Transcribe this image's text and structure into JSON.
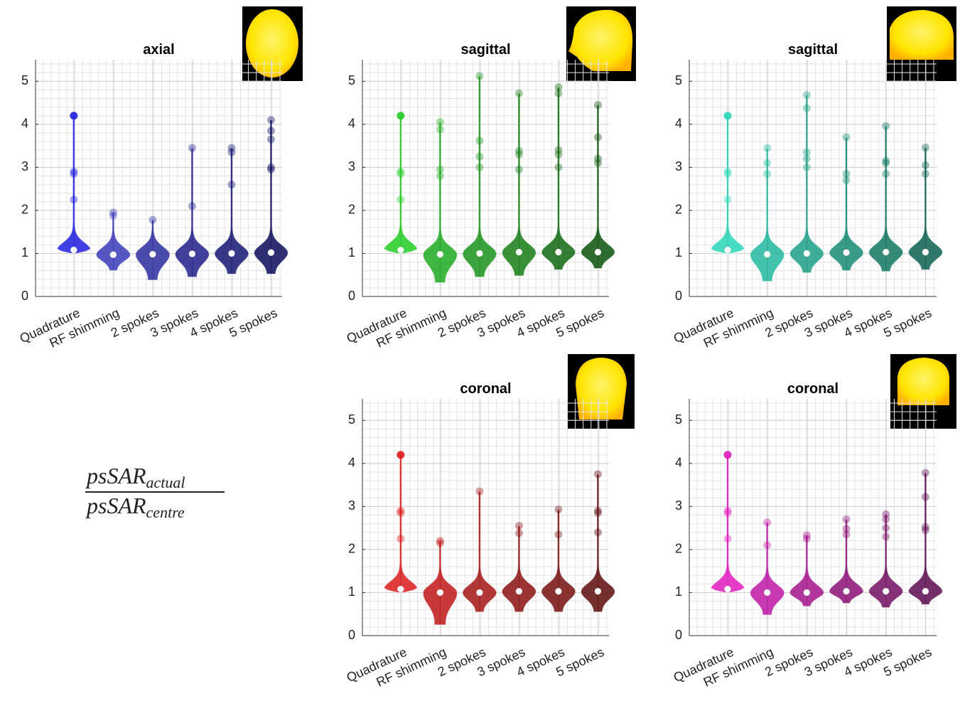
{
  "chart_data": [
    {
      "type": "violin",
      "title": "axial",
      "categories": [
        "Quadrature",
        "RF  shimming",
        "2 spokes",
        "3 spokes",
        "4 spokes",
        "5 spokes"
      ],
      "colors": [
        "#1f1fe0",
        "#3a3ab8",
        "#2b2ba0",
        "#20208a",
        "#151574",
        "#0b0b5c"
      ],
      "median": [
        1.08,
        0.97,
        0.98,
        0.99,
        1.0,
        1.02
      ],
      "min": [
        1.0,
        0.6,
        0.38,
        0.45,
        0.52,
        0.52
      ],
      "max": [
        4.2,
        1.95,
        1.78,
        3.45,
        3.45,
        4.1
      ],
      "outliers": [
        [
          4.2,
          2.9,
          2.85,
          2.25
        ],
        [
          1.95,
          1.88
        ],
        [
          1.78
        ],
        [
          3.45,
          2.1
        ],
        [
          3.45,
          3.35,
          2.6
        ],
        [
          4.1,
          3.85,
          3.65,
          3.0,
          2.95
        ]
      ],
      "ylim": [
        0,
        5.5
      ],
      "yticks": [
        0,
        1,
        2,
        3,
        4,
        5
      ],
      "grid": true
    },
    {
      "type": "violin",
      "title": "sagittal",
      "categories": [
        "Quadrature",
        "RF  shimming",
        "2 spokes",
        "3 spokes",
        "4 spokes",
        "5 spokes"
      ],
      "colors": [
        "#22cc22",
        "#1faa1f",
        "#1a931a",
        "#157d15",
        "#106810",
        "#0b520b"
      ],
      "median": [
        1.08,
        0.98,
        1.0,
        1.03,
        1.03,
        1.03
      ],
      "min": [
        1.0,
        0.32,
        0.45,
        0.48,
        0.62,
        0.65
      ],
      "max": [
        4.2,
        4.05,
        5.12,
        4.72,
        4.86,
        4.45
      ],
      "outliers": [
        [
          4.2,
          2.9,
          2.85,
          2.25
        ],
        [
          4.05,
          3.88,
          2.95,
          2.8
        ],
        [
          5.12,
          3.62,
          3.25,
          3.0
        ],
        [
          4.72,
          3.38,
          3.3,
          2.95
        ],
        [
          4.86,
          4.72,
          3.4,
          3.3,
          3.0
        ],
        [
          4.45,
          3.7,
          3.2,
          3.1
        ]
      ],
      "ylim": [
        0,
        5.5
      ],
      "yticks": [
        0,
        1,
        2,
        3,
        4,
        5
      ],
      "grid": true
    },
    {
      "type": "violin",
      "title": "sagittal",
      "categories": [
        "Quadrature",
        "RF  shimming",
        "2 spokes",
        "3 spokes",
        "4 spokes",
        "5 spokes"
      ],
      "colors": [
        "#2ad6b8",
        "#22b89c",
        "#1da087",
        "#178a74",
        "#127563",
        "#0d6052"
      ],
      "median": [
        1.08,
        0.98,
        1.0,
        1.02,
        1.03,
        1.03
      ],
      "min": [
        1.0,
        0.35,
        0.55,
        0.6,
        0.58,
        0.62
      ],
      "max": [
        4.2,
        3.45,
        4.68,
        3.7,
        3.96,
        3.46
      ],
      "outliers": [
        [
          4.2,
          2.9,
          2.85,
          2.25
        ],
        [
          3.45,
          3.1,
          2.85
        ],
        [
          4.68,
          4.37,
          3.35,
          3.2,
          3.0
        ],
        [
          3.7,
          2.85,
          2.7
        ],
        [
          3.96,
          3.15,
          3.1,
          2.85
        ],
        [
          3.46,
          3.05,
          2.85
        ]
      ],
      "ylim": [
        0,
        5.5
      ],
      "yticks": [
        0,
        1,
        2,
        3,
        4,
        5
      ],
      "grid": true
    },
    {
      "type": "violin",
      "title": "coronal",
      "categories": [
        "Quadrature",
        "RF  shimming",
        "2 spokes",
        "3 spokes",
        "4 spokes",
        "5 spokes"
      ],
      "colors": [
        "#dd1a1a",
        "#c01616",
        "#a51414",
        "#8c1111",
        "#740e0e",
        "#5e0b0b"
      ],
      "median": [
        1.08,
        1.0,
        1.0,
        1.03,
        1.03,
        1.03
      ],
      "min": [
        1.0,
        0.25,
        0.55,
        0.55,
        0.55,
        0.55
      ],
      "max": [
        4.2,
        2.2,
        3.35,
        2.55,
        2.93,
        3.75
      ],
      "outliers": [
        [
          4.2,
          2.9,
          2.85,
          2.25
        ],
        [
          2.2,
          2.15
        ],
        [
          3.35
        ],
        [
          2.55,
          2.38
        ],
        [
          2.93,
          2.35
        ],
        [
          3.75,
          2.9,
          2.85,
          2.4
        ]
      ],
      "ylim": [
        0,
        5.5
      ],
      "yticks": [
        0,
        1,
        2,
        3,
        4,
        5
      ],
      "grid": true
    },
    {
      "type": "violin",
      "title": "coronal",
      "categories": [
        "Quadrature",
        "RF  shimming",
        "2 spokes",
        "3 spokes",
        "4 spokes",
        "5 spokes"
      ],
      "colors": [
        "#e01ac0",
        "#c016a4",
        "#a3148c",
        "#8a1176",
        "#720e62",
        "#5c0b4f"
      ],
      "median": [
        1.08,
        1.0,
        1.0,
        1.03,
        1.03,
        1.03
      ],
      "min": [
        1.0,
        0.48,
        0.68,
        0.75,
        0.65,
        0.72
      ],
      "max": [
        4.2,
        2.63,
        2.33,
        2.7,
        2.82,
        3.78
      ],
      "outliers": [
        [
          4.2,
          2.9,
          2.85,
          2.25
        ],
        [
          2.63,
          2.1
        ],
        [
          2.33,
          2.25
        ],
        [
          2.7,
          2.48,
          2.35
        ],
        [
          2.82,
          2.7,
          2.5,
          2.3
        ],
        [
          3.78,
          3.22,
          2.52,
          2.45
        ]
      ],
      "ylim": [
        0,
        5.5
      ],
      "yticks": [
        0,
        1,
        2,
        3,
        4,
        5
      ],
      "grid": true
    }
  ],
  "annotation": {
    "numerator": "psSAR",
    "numerator_sub": "actual",
    "denominator": "psSAR",
    "denominator_sub": "centre"
  }
}
